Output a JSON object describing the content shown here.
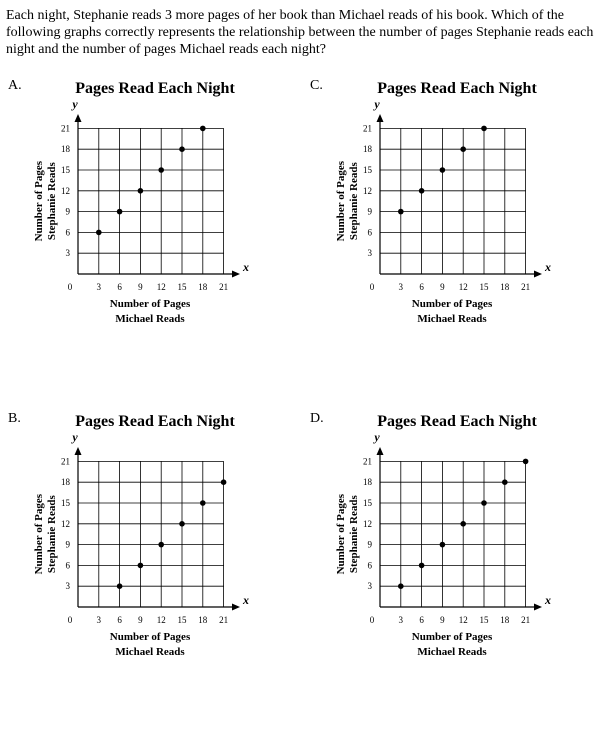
{
  "question": "Each night, Stephanie reads 3 more pages of her book than Michael reads of his book. Which of the following graphs correctly represents the relationship between the number of pages Stephanie reads each night and the number of pages Michael reads each night?",
  "chart_data": [
    {
      "option": "A.",
      "type": "scatter",
      "title": "Pages Read Each Night",
      "xvar": "x",
      "yvar": "y",
      "xlabel": [
        "Number of Pages",
        "Michael Reads"
      ],
      "ylabel": [
        "Number of Pages",
        "Stephanie Reads"
      ],
      "xlim": [
        0,
        21
      ],
      "ylim": [
        0,
        21
      ],
      "xticks": [
        "3",
        "6",
        "9",
        "12",
        "15",
        "18",
        "21"
      ],
      "yticks": [
        "3",
        "6",
        "9",
        "12",
        "15",
        "18",
        "21"
      ],
      "origin": "0",
      "grid": true,
      "points": [
        [
          3,
          6
        ],
        [
          6,
          9
        ],
        [
          9,
          12
        ],
        [
          12,
          15
        ],
        [
          15,
          18
        ],
        [
          18,
          21
        ]
      ]
    },
    {
      "option": "C.",
      "type": "scatter",
      "title": "Pages Read Each Night",
      "xvar": "x",
      "yvar": "y",
      "xlabel": [
        "Number of Pages",
        "Michael Reads"
      ],
      "ylabel": [
        "Number of Pages",
        "Stephanie Reads"
      ],
      "xlim": [
        0,
        21
      ],
      "ylim": [
        0,
        21
      ],
      "xticks": [
        "3",
        "6",
        "9",
        "12",
        "15",
        "18",
        "21"
      ],
      "yticks": [
        "3",
        "6",
        "9",
        "12",
        "15",
        "18",
        "21"
      ],
      "origin": "0",
      "grid": true,
      "points": [
        [
          3,
          9
        ],
        [
          6,
          12
        ],
        [
          9,
          15
        ],
        [
          12,
          18
        ],
        [
          15,
          21
        ]
      ]
    },
    {
      "option": "B.",
      "type": "scatter",
      "title": "Pages Read Each Night",
      "xvar": "x",
      "yvar": "y",
      "xlabel": [
        "Number of Pages",
        "Michael Reads"
      ],
      "ylabel": [
        "Number of Pages",
        "Stephanie Reads"
      ],
      "xlim": [
        0,
        21
      ],
      "ylim": [
        0,
        21
      ],
      "xticks": [
        "3",
        "6",
        "9",
        "12",
        "15",
        "18",
        "21"
      ],
      "yticks": [
        "3",
        "6",
        "9",
        "12",
        "15",
        "18",
        "21"
      ],
      "origin": "0",
      "grid": true,
      "points": [
        [
          6,
          3
        ],
        [
          9,
          6
        ],
        [
          12,
          9
        ],
        [
          15,
          12
        ],
        [
          18,
          15
        ],
        [
          21,
          18
        ]
      ]
    },
    {
      "option": "D.",
      "type": "scatter",
      "title": "Pages Read Each Night",
      "xvar": "x",
      "yvar": "y",
      "xlabel": [
        "Number of Pages",
        "Michael Reads"
      ],
      "ylabel": [
        "Number of Pages",
        "Stephanie Reads"
      ],
      "xlim": [
        0,
        21
      ],
      "ylim": [
        0,
        21
      ],
      "xticks": [
        "3",
        "6",
        "9",
        "12",
        "15",
        "18",
        "21"
      ],
      "yticks": [
        "3",
        "6",
        "9",
        "12",
        "15",
        "18",
        "21"
      ],
      "origin": "0",
      "grid": true,
      "points": [
        [
          3,
          3
        ],
        [
          6,
          6
        ],
        [
          9,
          9
        ],
        [
          12,
          12
        ],
        [
          15,
          15
        ],
        [
          18,
          18
        ],
        [
          21,
          21
        ]
      ]
    }
  ]
}
